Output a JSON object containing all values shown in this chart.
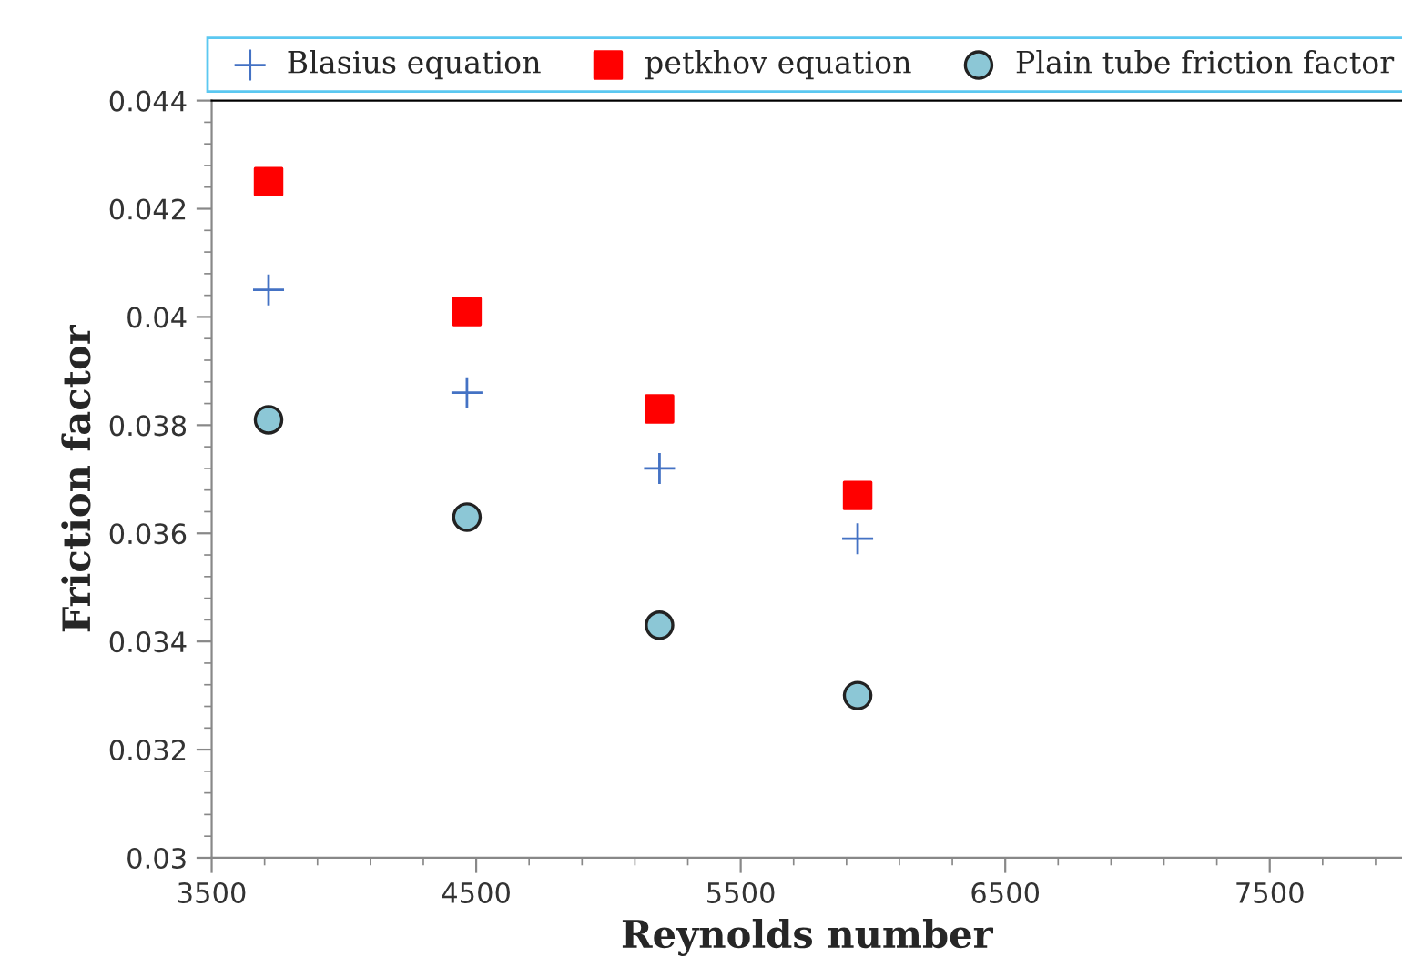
{
  "chart_data": {
    "type": "scatter",
    "xlabel": "Reynolds number",
    "ylabel": "Friction factor",
    "x": [
      3715,
      4465,
      5193,
      5942
    ],
    "series": [
      {
        "name": "Blasius equation",
        "color": "#4472c4",
        "marker": "cross",
        "values": [
          0.0405,
          0.0386,
          0.0372,
          0.0359
        ]
      },
      {
        "name": "petkhov equation",
        "color": "#ff0000",
        "marker": "square",
        "values": [
          0.0425,
          0.0401,
          0.0383,
          0.0367
        ]
      },
      {
        "name": "Plain tube friction factor",
        "color": "#8cc7d6",
        "marker": "circle",
        "values": [
          0.0381,
          0.0363,
          0.0343,
          0.033
        ]
      }
    ],
    "xlim": [
      3500,
      8000
    ],
    "xticks": [
      3500,
      4500,
      5500,
      6500,
      7500
    ],
    "ylim": [
      0.03,
      0.044
    ],
    "yticks": [
      0.03,
      0.032,
      0.034,
      0.036,
      0.038,
      0.04,
      0.042,
      0.044
    ],
    "grid": false,
    "legend": "top"
  }
}
